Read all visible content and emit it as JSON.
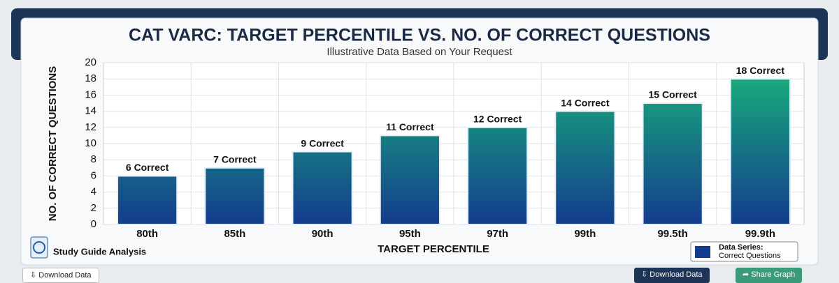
{
  "chart_data": {
    "type": "bar",
    "title": "CAT VARC: TARGET PERCENTILE VS. NO. OF CORRECT QUESTIONS",
    "subtitle": "Illustrative Data Based on Your Request",
    "x_label": "TARGET PERCENTILE",
    "y_label": "NO. OF CORRECT QUESTIONS",
    "categories": [
      "80th",
      "85th",
      "90th",
      "95th",
      "97th",
      "99th",
      "99.5th",
      "99.9th"
    ],
    "series": [
      {
        "name": "Correct Questions",
        "gradient": [
          "#18b479",
          "#143c8e"
        ],
        "values": [
          6,
          7,
          9,
          11,
          12,
          14,
          15,
          18
        ],
        "value_labels": [
          "6 Correct",
          "7 Correct",
          "9 Correct",
          "11 Correct",
          "12 Correct",
          "14 Correct",
          "15 Correct",
          "18 Correct"
        ]
      }
    ],
    "legend_title": "Data Series:",
    "ylim": [
      0,
      20
    ],
    "yticks": [
      0,
      2,
      4,
      6,
      8,
      10,
      12,
      14,
      16,
      18,
      20
    ],
    "grid": true
  },
  "badge": "Study Guide Analysis",
  "buttons": [
    "Download Data",
    "Download Data",
    "Share Graph"
  ]
}
